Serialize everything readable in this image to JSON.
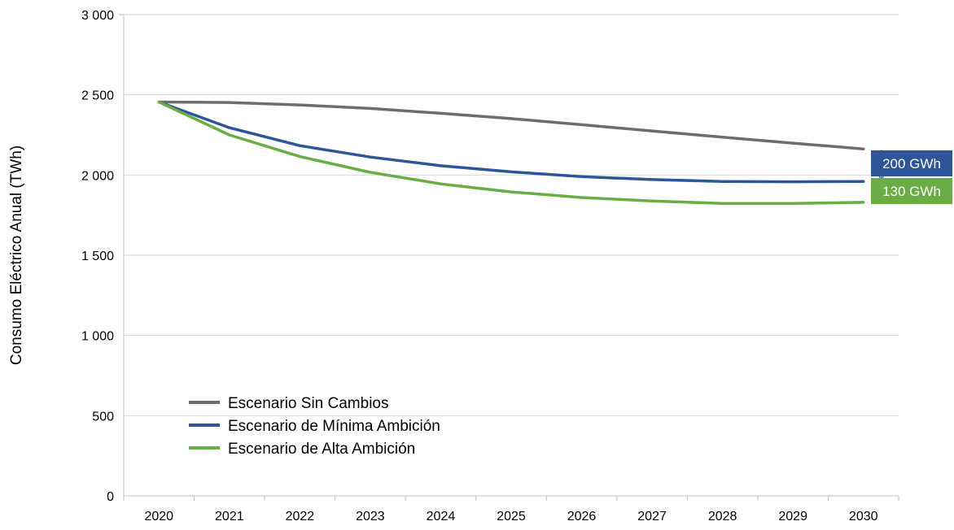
{
  "chart_data": {
    "type": "line",
    "title": "",
    "xlabel": "",
    "ylabel": "Consumo Eléctrico Anual (TWh)",
    "ylim": [
      0,
      3000
    ],
    "grid": true,
    "legend_position": "bottom-left",
    "categories": [
      "2020",
      "2021",
      "2022",
      "2023",
      "2024",
      "2025",
      "2026",
      "2027",
      "2028",
      "2029",
      "2030"
    ],
    "y_ticks": [
      0,
      500,
      1000,
      1500,
      2000,
      2500,
      3000
    ],
    "y_tick_labels": [
      "0",
      "500",
      "1 000",
      "1 500",
      "2 000",
      "2 500",
      "3 000"
    ],
    "series": [
      {
        "name": "Escenario Sin Cambios",
        "color": "#6d6d6d",
        "values": [
          2455,
          2452,
          2437,
          2415,
          2385,
          2352,
          2314,
          2275,
          2236,
          2199,
          2163
        ]
      },
      {
        "name": "Escenario de Mínima Ambición",
        "color": "#2e5597",
        "values": [
          2455,
          2295,
          2183,
          2112,
          2058,
          2020,
          1990,
          1972,
          1960,
          1958,
          1960
        ]
      },
      {
        "name": "Escenario de Alta Ambición",
        "color": "#6aad45",
        "values": [
          2455,
          2250,
          2115,
          2017,
          1945,
          1895,
          1860,
          1838,
          1823,
          1823,
          1830
        ]
      }
    ],
    "annotations": [
      {
        "text": "200 GWh",
        "color": "#2e5597",
        "from": 2163,
        "to": 1960
      },
      {
        "text": "130 GWh",
        "color": "#6aad45",
        "from": 1960,
        "to": 1830
      }
    ]
  }
}
